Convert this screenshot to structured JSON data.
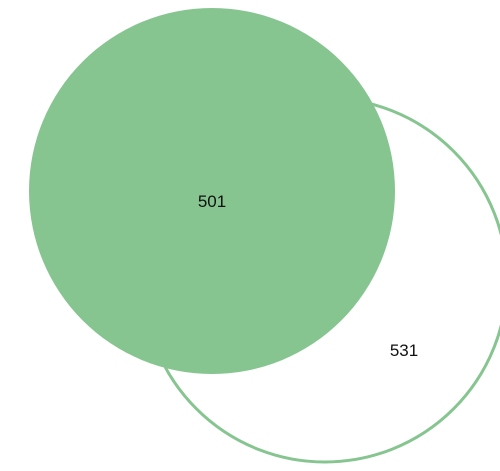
{
  "venn": {
    "sets": [
      {
        "label": "501",
        "style": "filled",
        "color": "#86c590"
      },
      {
        "label": "531",
        "style": "outline",
        "color": "#86c590"
      }
    ]
  }
}
